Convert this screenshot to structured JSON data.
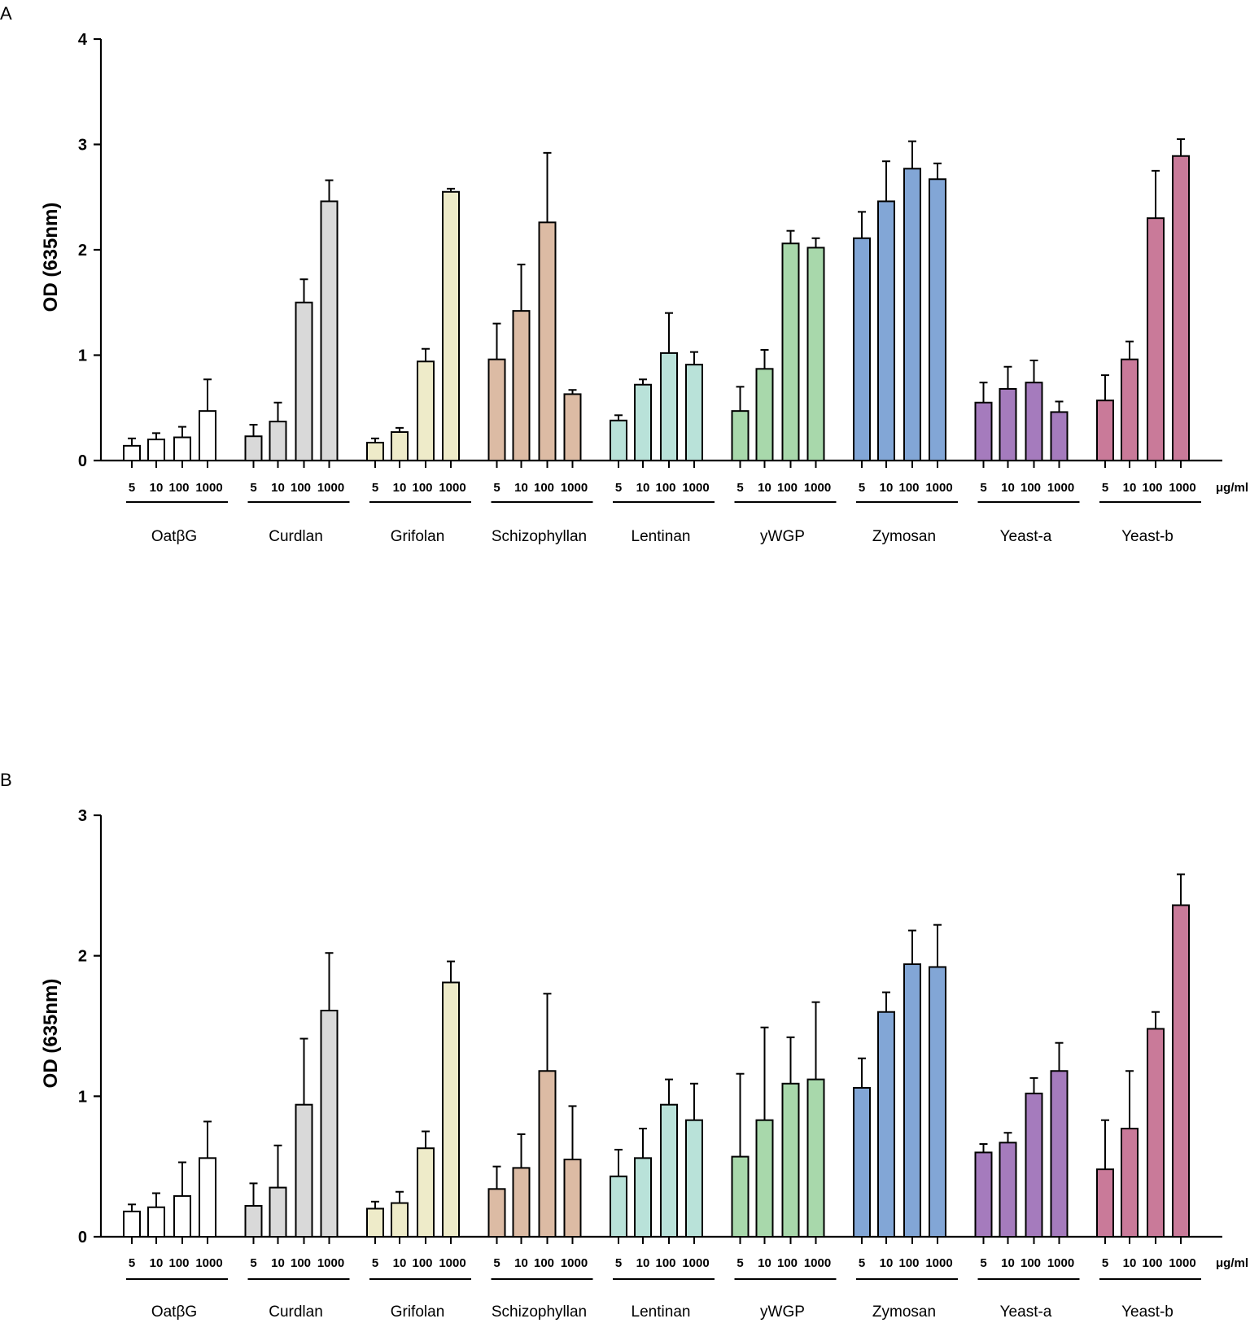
{
  "chart_data": [
    {
      "panel": "A",
      "type": "bar",
      "title": "",
      "xlabel": "",
      "ylabel": "OD (635nm)",
      "ylim": [
        0,
        4
      ],
      "yticks": [
        "0",
        "1",
        "2",
        "3",
        "4"
      ],
      "unit_label": "μg/ml",
      "concentrations": [
        "5",
        "10",
        "100",
        "1000"
      ],
      "groups": [
        {
          "name": "OatβG",
          "color": "#ffffff",
          "values": [
            0.14,
            0.2,
            0.22,
            0.47
          ],
          "errors": [
            0.07,
            0.06,
            0.1,
            0.3
          ]
        },
        {
          "name": "Curdlan",
          "color": "#d9d9d9",
          "values": [
            0.23,
            0.37,
            1.5,
            2.46
          ],
          "errors": [
            0.11,
            0.18,
            0.22,
            0.2
          ]
        },
        {
          "name": "Grifolan",
          "color": "#eeebc9",
          "values": [
            0.17,
            0.27,
            0.94,
            2.55
          ],
          "errors": [
            0.04,
            0.04,
            0.12,
            0.03
          ]
        },
        {
          "name": "Schizophyllan",
          "color": "#dcbba4",
          "values": [
            0.96,
            1.42,
            2.26,
            0.63
          ],
          "errors": [
            0.34,
            0.44,
            0.66,
            0.04
          ]
        },
        {
          "name": "Lentinan",
          "color": "#b9e2d9",
          "values": [
            0.38,
            0.72,
            1.02,
            0.91
          ],
          "errors": [
            0.05,
            0.05,
            0.38,
            0.12
          ]
        },
        {
          "name": "yWGP",
          "color": "#a8d8ab",
          "values": [
            0.47,
            0.87,
            2.06,
            2.02
          ],
          "errors": [
            0.23,
            0.18,
            0.12,
            0.09
          ]
        },
        {
          "name": "Zymosan",
          "color": "#82a6d6",
          "values": [
            2.11,
            2.46,
            2.77,
            2.67
          ],
          "errors": [
            0.25,
            0.38,
            0.26,
            0.15
          ]
        },
        {
          "name": "Yeast-a",
          "color": "#a57bbd",
          "values": [
            0.55,
            0.68,
            0.74,
            0.46
          ],
          "errors": [
            0.19,
            0.21,
            0.21,
            0.1
          ]
        },
        {
          "name": "Yeast-b",
          "color": "#c97a99",
          "values": [
            0.57,
            0.96,
            2.3,
            2.89
          ],
          "errors": [
            0.24,
            0.17,
            0.45,
            0.16
          ]
        }
      ]
    },
    {
      "panel": "B",
      "type": "bar",
      "title": "",
      "xlabel": "",
      "ylabel": "OD (635nm)",
      "ylim": [
        0,
        3
      ],
      "yticks": [
        "0",
        "1",
        "2",
        "3"
      ],
      "unit_label": "μg/ml",
      "concentrations": [
        "5",
        "10",
        "100",
        "1000"
      ],
      "groups": [
        {
          "name": "OatβG",
          "color": "#ffffff",
          "values": [
            0.18,
            0.21,
            0.29,
            0.56
          ],
          "errors": [
            0.05,
            0.1,
            0.24,
            0.26
          ]
        },
        {
          "name": "Curdlan",
          "color": "#d9d9d9",
          "values": [
            0.22,
            0.35,
            0.94,
            1.61
          ],
          "errors": [
            0.16,
            0.3,
            0.47,
            0.41
          ]
        },
        {
          "name": "Grifolan",
          "color": "#eeebc9",
          "values": [
            0.2,
            0.24,
            0.63,
            1.81
          ],
          "errors": [
            0.05,
            0.08,
            0.12,
            0.15
          ]
        },
        {
          "name": "Schizophyllan",
          "color": "#dcbba4",
          "values": [
            0.34,
            0.49,
            1.18,
            0.55
          ],
          "errors": [
            0.16,
            0.24,
            0.55,
            0.38
          ]
        },
        {
          "name": "Lentinan",
          "color": "#b9e2d9",
          "values": [
            0.43,
            0.56,
            0.94,
            0.83
          ],
          "errors": [
            0.19,
            0.21,
            0.18,
            0.26
          ]
        },
        {
          "name": "yWGP",
          "color": "#a8d8ab",
          "values": [
            0.57,
            0.83,
            1.09,
            1.12
          ],
          "errors": [
            0.59,
            0.66,
            0.33,
            0.55
          ]
        },
        {
          "name": "Zymosan",
          "color": "#82a6d6",
          "values": [
            1.06,
            1.6,
            1.94,
            1.92
          ],
          "errors": [
            0.21,
            0.14,
            0.24,
            0.3
          ]
        },
        {
          "name": "Yeast-a",
          "color": "#a57bbd",
          "values": [
            0.6,
            0.67,
            1.02,
            1.18
          ],
          "errors": [
            0.06,
            0.07,
            0.11,
            0.2
          ]
        },
        {
          "name": "Yeast-b",
          "color": "#c97a99",
          "values": [
            0.48,
            0.77,
            1.48,
            2.36
          ],
          "errors": [
            0.35,
            0.41,
            0.12,
            0.22
          ]
        }
      ]
    }
  ]
}
